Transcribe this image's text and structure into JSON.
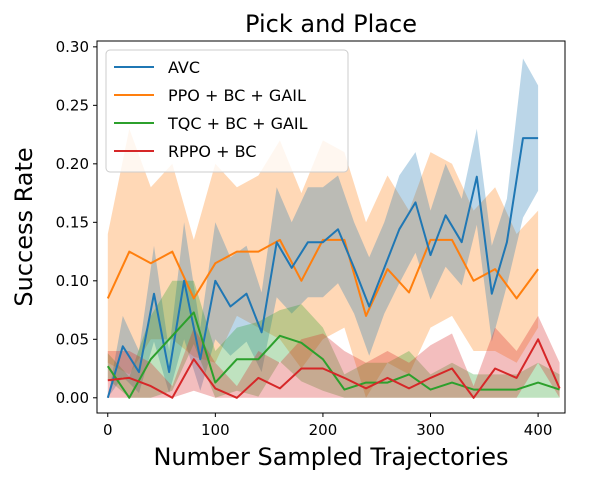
{
  "chart_data": {
    "type": "line",
    "title": "Pick and Place",
    "xlabel": "Number Sampled Trajectories",
    "ylabel": "Success Rate",
    "xlim": [
      -10,
      425
    ],
    "ylim": [
      -0.013,
      0.305
    ],
    "xticks": [
      0,
      100,
      200,
      300,
      400
    ],
    "xtick_labels": [
      "0",
      "100",
      "200",
      "300",
      "400"
    ],
    "yticks": [
      0.0,
      0.05,
      0.1,
      0.15,
      0.2,
      0.25,
      0.3
    ],
    "ytick_labels": [
      "0.00",
      "0.05",
      "0.10",
      "0.15",
      "0.20",
      "0.25",
      "0.30"
    ],
    "grid": false,
    "legend_position": "top-left",
    "series": [
      {
        "name": "PPO + BC + GAIL",
        "color": "#ff7f0e",
        "x": [
          0,
          20,
          40,
          60,
          80,
          100,
          120,
          140,
          160,
          180,
          200,
          220,
          240,
          260,
          280,
          300,
          320,
          340,
          360,
          380,
          400
        ],
        "y": [
          0.085,
          0.125,
          0.115,
          0.125,
          0.085,
          0.115,
          0.125,
          0.125,
          0.135,
          0.1,
          0.135,
          0.135,
          0.07,
          0.11,
          0.09,
          0.135,
          0.135,
          0.1,
          0.11,
          0.085,
          0.11
        ],
        "upper": [
          0.14,
          0.23,
          0.18,
          0.2,
          0.135,
          0.2,
          0.18,
          0.19,
          0.22,
          0.175,
          0.22,
          0.21,
          0.15,
          0.19,
          0.16,
          0.21,
          0.2,
          0.16,
          0.18,
          0.14,
          0.16
        ],
        "lower": [
          0.03,
          0.02,
          0.05,
          0.05,
          0.035,
          0.03,
          0.07,
          0.06,
          0.05,
          0.025,
          0.05,
          0.06,
          0.0,
          0.03,
          0.02,
          0.06,
          0.07,
          0.04,
          0.04,
          0.03,
          0.06
        ]
      },
      {
        "name": "AVC",
        "color": "#1f77b4",
        "x": [
          0,
          14,
          29,
          43,
          57,
          71,
          86,
          100,
          114,
          129,
          143,
          157,
          171,
          186,
          200,
          214,
          229,
          243,
          257,
          271,
          286,
          300,
          314,
          329,
          343,
          357,
          371,
          386,
          400
        ],
        "y": [
          0.0,
          0.044,
          0.022,
          0.089,
          0.022,
          0.1,
          0.033,
          0.1,
          0.078,
          0.089,
          0.056,
          0.133,
          0.111,
          0.133,
          0.133,
          0.144,
          0.111,
          0.078,
          0.111,
          0.144,
          0.167,
          0.122,
          0.156,
          0.133,
          0.189,
          0.089,
          0.133,
          0.222,
          0.222
        ],
        "upper": [
          0.0,
          0.07,
          0.04,
          0.13,
          0.04,
          0.15,
          0.06,
          0.15,
          0.12,
          0.13,
          0.09,
          0.18,
          0.15,
          0.18,
          0.18,
          0.19,
          0.15,
          0.12,
          0.15,
          0.19,
          0.21,
          0.16,
          0.2,
          0.17,
          0.23,
          0.13,
          0.17,
          0.29,
          0.267
        ],
        "lower": [
          0.0,
          0.018,
          0.004,
          0.048,
          0.004,
          0.05,
          0.006,
          0.05,
          0.036,
          0.048,
          0.022,
          0.086,
          0.072,
          0.086,
          0.086,
          0.098,
          0.072,
          0.036,
          0.072,
          0.098,
          0.124,
          0.084,
          0.112,
          0.096,
          0.148,
          0.048,
          0.096,
          0.154,
          0.177
        ]
      },
      {
        "name": "TQC + BC + GAIL",
        "color": "#2ca02c",
        "x": [
          0,
          20,
          40,
          60,
          80,
          100,
          120,
          140,
          160,
          180,
          200,
          220,
          240,
          260,
          280,
          300,
          320,
          340,
          360,
          380,
          400,
          420
        ],
        "y": [
          0.027,
          0.0,
          0.033,
          0.053,
          0.073,
          0.013,
          0.033,
          0.033,
          0.053,
          0.047,
          0.033,
          0.007,
          0.013,
          0.013,
          0.02,
          0.007,
          0.013,
          0.007,
          0.007,
          0.007,
          0.013,
          0.007
        ],
        "upper": [
          0.038,
          0.018,
          0.07,
          0.1,
          0.1,
          0.04,
          0.06,
          0.065,
          0.075,
          0.08,
          0.06,
          0.02,
          0.03,
          0.03,
          0.04,
          0.02,
          0.03,
          0.02,
          0.02,
          0.02,
          0.03,
          0.02
        ],
        "lower": [
          0.016,
          0.0,
          0.0,
          0.006,
          0.046,
          0.0,
          0.006,
          0.001,
          0.031,
          0.014,
          0.006,
          0.0,
          0.0,
          0.0,
          0.0,
          0.0,
          0.0,
          0.0,
          0.0,
          0.0,
          0.0,
          0.0
        ]
      },
      {
        "name": "RPPO + BC",
        "color": "#d62728",
        "x": [
          0,
          20,
          40,
          60,
          80,
          100,
          120,
          140,
          160,
          180,
          200,
          220,
          240,
          260,
          280,
          300,
          320,
          340,
          360,
          380,
          400,
          420
        ],
        "y": [
          0.015,
          0.017,
          0.01,
          0.0,
          0.033,
          0.008,
          0.0,
          0.017,
          0.008,
          0.025,
          0.025,
          0.017,
          0.008,
          0.017,
          0.008,
          0.017,
          0.025,
          0.0,
          0.025,
          0.017,
          0.05,
          0.008
        ],
        "upper": [
          0.04,
          0.04,
          0.03,
          0.01,
          0.06,
          0.03,
          0.01,
          0.04,
          0.03,
          0.05,
          0.055,
          0.04,
          0.03,
          0.04,
          0.03,
          0.045,
          0.055,
          0.01,
          0.06,
          0.04,
          0.07,
          0.03
        ],
        "lower": [
          0.0,
          0.0,
          0.0,
          0.0,
          0.006,
          0.0,
          0.0,
          0.0,
          0.0,
          0.0,
          0.0,
          0.0,
          0.0,
          0.0,
          0.0,
          0.0,
          0.0,
          0.0,
          0.0,
          0.0,
          0.03,
          0.0
        ]
      }
    ]
  },
  "legend_order": [
    "AVC",
    "PPO + BC + GAIL",
    "TQC + BC + GAIL",
    "RPPO + BC"
  ]
}
